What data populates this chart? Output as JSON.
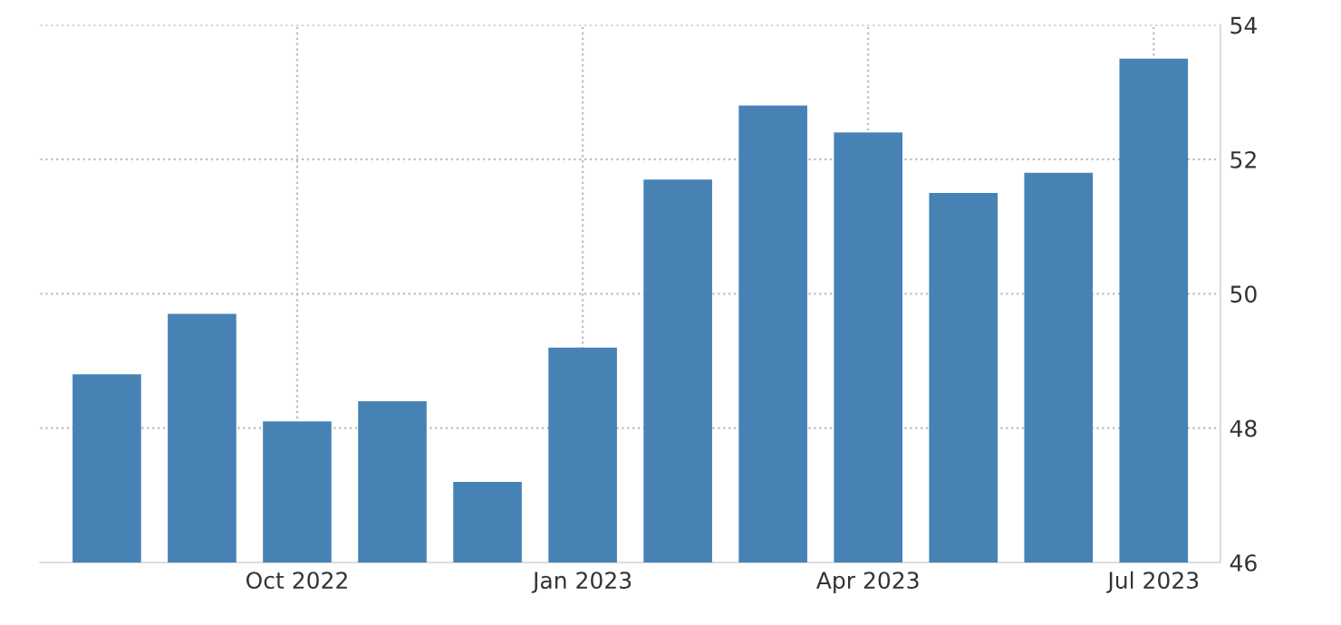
{
  "chart_data": {
    "type": "bar",
    "categories": [
      null,
      null,
      "Oct 2022",
      null,
      null,
      "Jan 2023",
      null,
      null,
      "Apr 2023",
      null,
      null,
      "Jul 2023"
    ],
    "values": [
      48.8,
      49.7,
      48.1,
      48.4,
      47.2,
      49.2,
      51.7,
      52.8,
      52.4,
      51.5,
      51.8,
      53.5
    ],
    "color": "#4682b4",
    "ylim": [
      46,
      54
    ],
    "yticks": [
      46,
      48,
      50,
      52,
      54
    ],
    "grid": true
  }
}
